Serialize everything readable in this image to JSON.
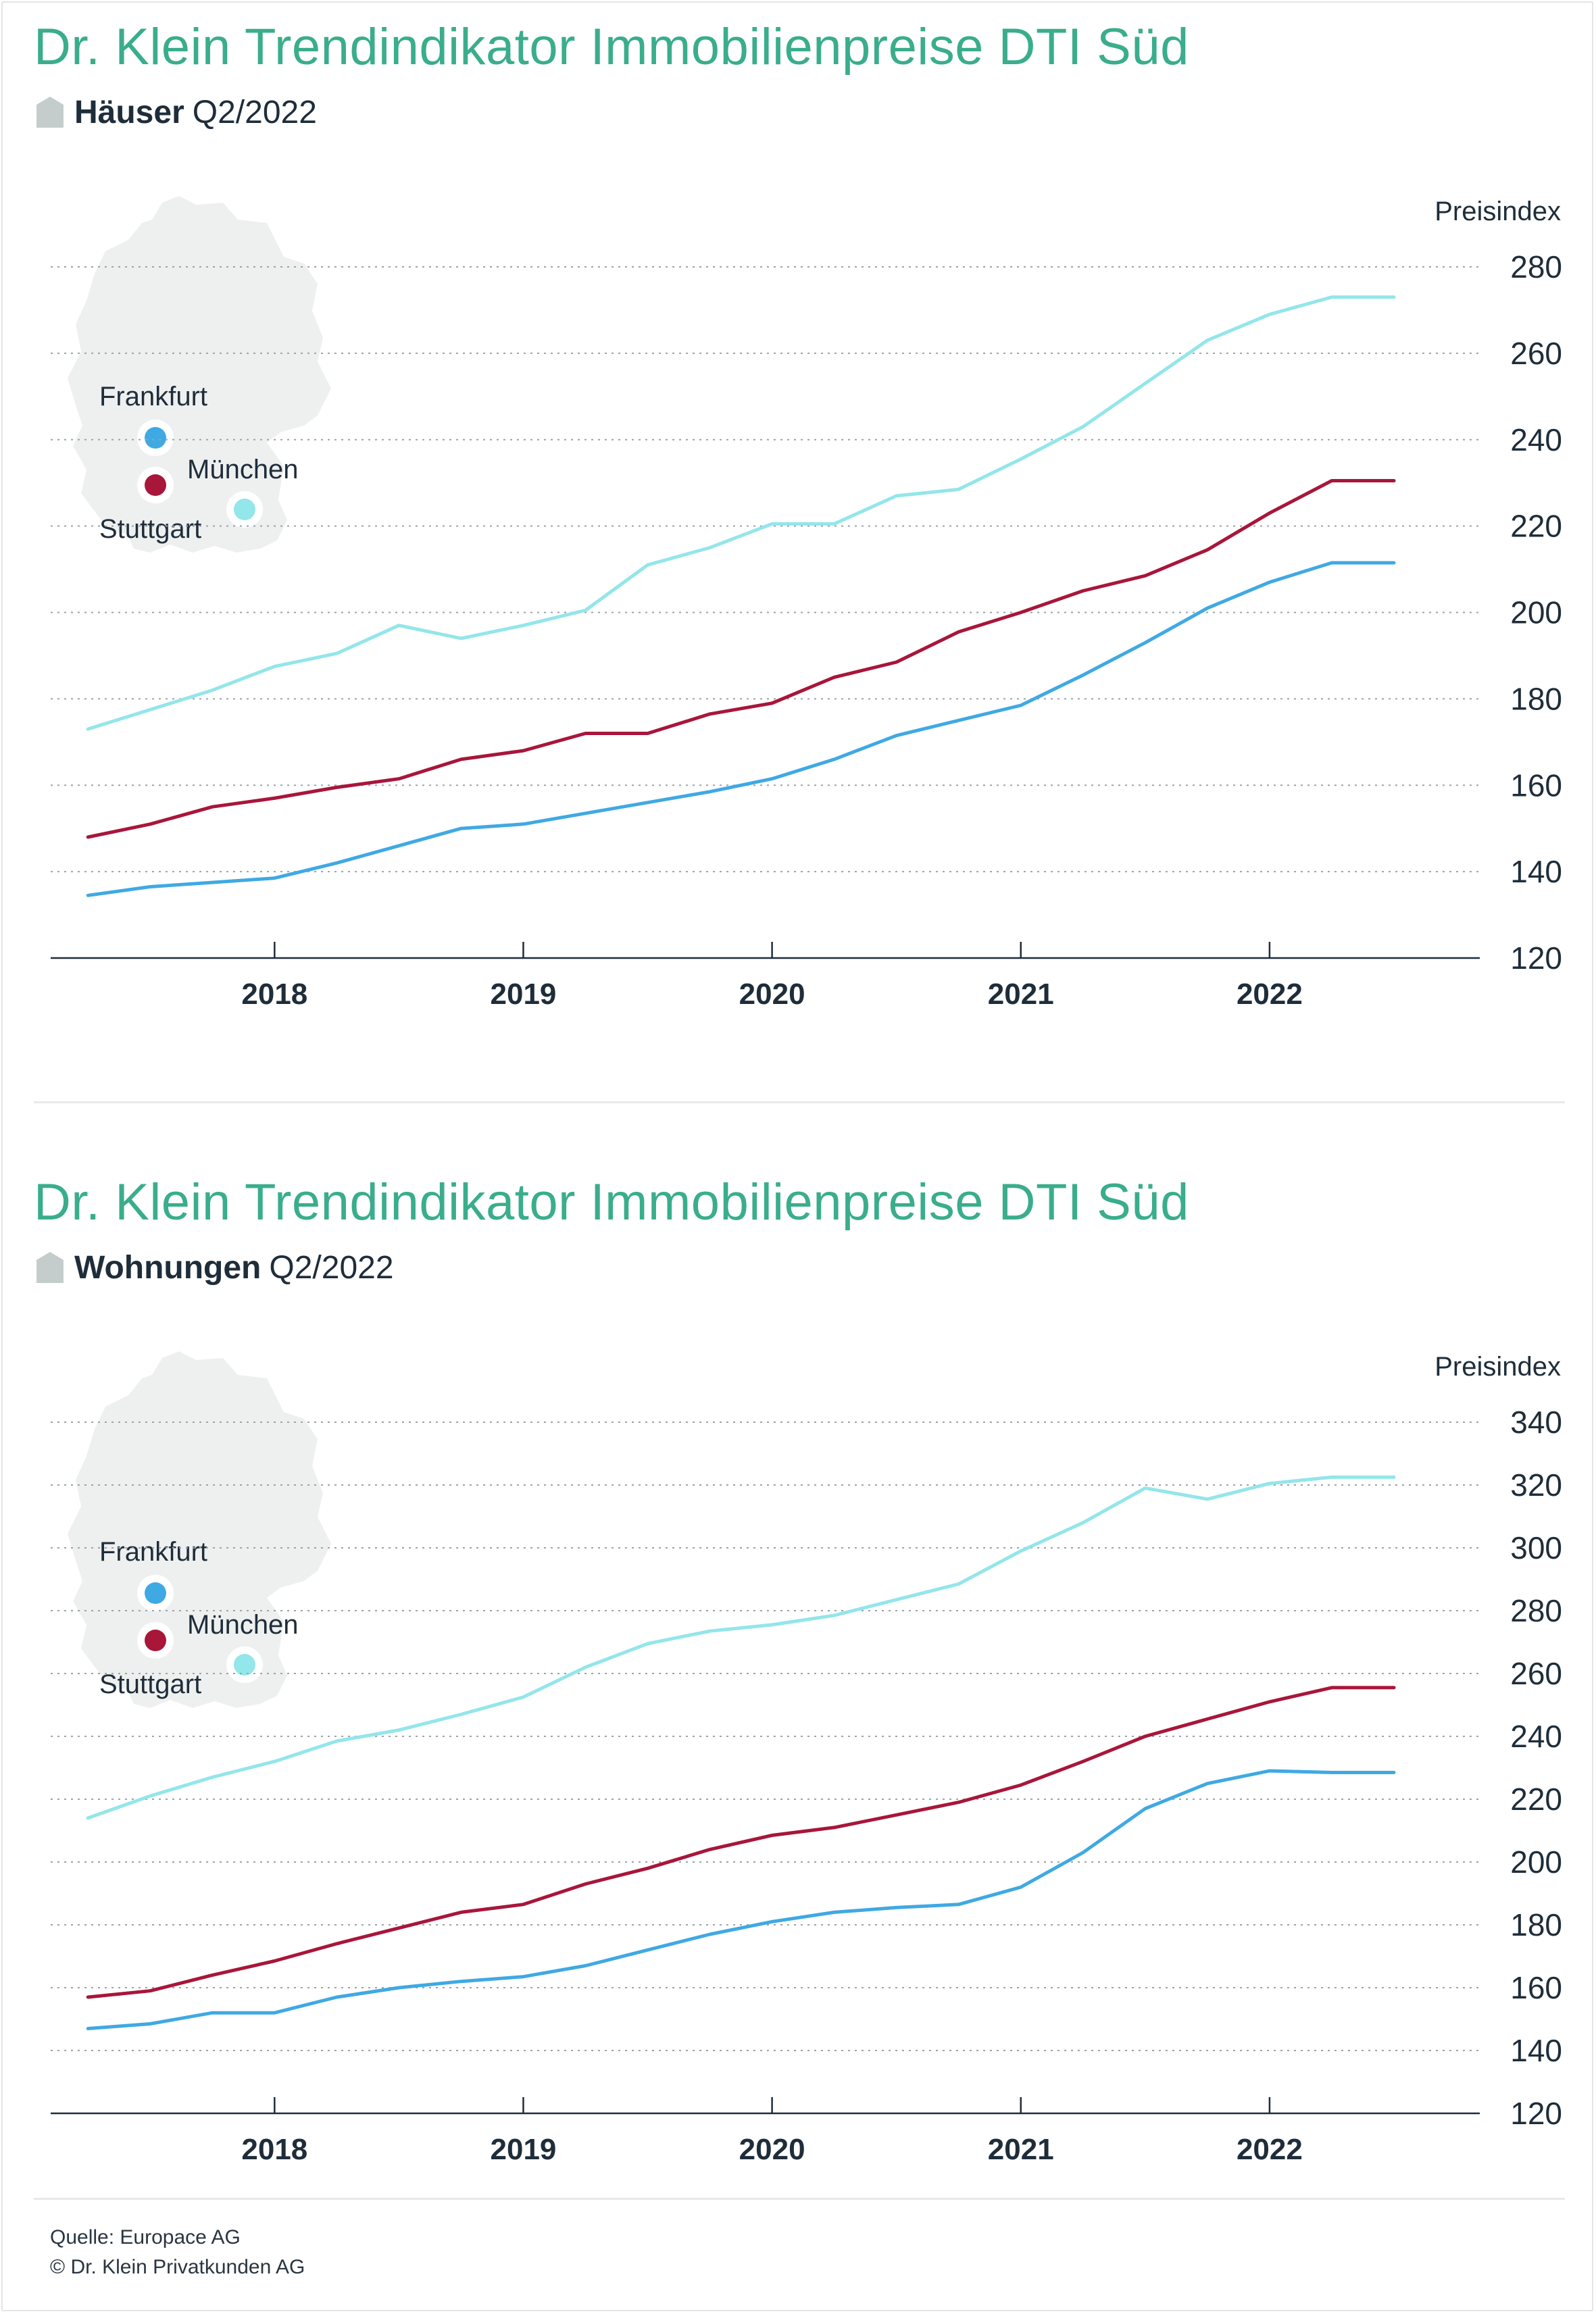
{
  "colors": {
    "frankfurt": "#3fa9e3",
    "muenchen": "#a8163a",
    "stuttgart": "#93e6ea",
    "title": "#3aad8c",
    "map": "#eef0f0"
  },
  "icons": {
    "subtitle_icon": "house-icon",
    "map": "germany-map-icon"
  },
  "panels": [
    {
      "title": "Dr. Klein Trendindikator Immobilienpreise DTI Süd",
      "kind": "Häuser",
      "period": "Q2/2022",
      "map_labels": {
        "frankfurt": "Frankfurt",
        "muenchen": "München",
        "stuttgart": "Stuttgart"
      }
    },
    {
      "title": "Dr. Klein Trendindikator Immobilienpreise DTI Süd",
      "kind": "Wohnungen",
      "period": "Q2/2022",
      "map_labels": {
        "frankfurt": "Frankfurt",
        "muenchen": "München",
        "stuttgart": "Stuttgart"
      }
    }
  ],
  "chart_data": [
    {
      "type": "line",
      "title": "Häuser Q2/2022",
      "ylabel": "Preisindex",
      "ylim": [
        120,
        280
      ],
      "yticks": [
        280,
        260,
        240,
        220,
        200,
        180,
        160,
        140,
        120
      ],
      "x_tick_labels": [
        "2018",
        "2019",
        "2020",
        "2021",
        "2022"
      ],
      "x_tick_years": [
        2018,
        2019,
        2020,
        2021,
        2022
      ],
      "xlim": [
        2017.1,
        2022.75
      ],
      "grid": true,
      "x": [
        2017.25,
        2017.5,
        2017.75,
        2018.0,
        2018.25,
        2018.5,
        2018.75,
        2019.0,
        2019.25,
        2019.5,
        2019.75,
        2020.0,
        2020.25,
        2020.5,
        2020.75,
        2021.0,
        2021.25,
        2021.5,
        2021.75,
        2022.0,
        2022.25,
        2022.5
      ],
      "series": [
        {
          "name": "Frankfurt",
          "color": "#3fa9e3",
          "values": [
            134.5,
            136.5,
            137.5,
            138.5,
            142,
            146,
            150,
            151,
            153.5,
            156,
            158.5,
            161.5,
            166,
            171.5,
            175,
            178.5,
            185.5,
            193,
            201,
            207,
            211.5,
            211.5
          ]
        },
        {
          "name": "München",
          "color": "#a8163a",
          "values": [
            148,
            151,
            155,
            157,
            159.5,
            161.5,
            166,
            168,
            172,
            172,
            176.5,
            179,
            185,
            188.5,
            195.5,
            200,
            205,
            208.5,
            214.5,
            223,
            230.5,
            230.5
          ]
        },
        {
          "name": "Stuttgart",
          "color": "#93e6ea",
          "values": [
            173,
            177.5,
            182,
            187.5,
            190.5,
            197,
            194,
            197,
            200.5,
            211,
            215,
            220.5,
            220.5,
            227,
            228.5,
            235.5,
            243,
            253,
            263,
            269,
            273,
            273
          ]
        }
      ]
    },
    {
      "type": "line",
      "title": "Wohnungen Q2/2022",
      "ylabel": "Preisindex",
      "ylim": [
        120,
        340
      ],
      "yticks": [
        340,
        320,
        300,
        280,
        260,
        240,
        220,
        200,
        180,
        160,
        140,
        120
      ],
      "x_tick_labels": [
        "2018",
        "2019",
        "2020",
        "2021",
        "2022"
      ],
      "x_tick_years": [
        2018,
        2019,
        2020,
        2021,
        2022
      ],
      "xlim": [
        2017.1,
        2022.75
      ],
      "grid": true,
      "x": [
        2017.25,
        2017.5,
        2017.75,
        2018.0,
        2018.25,
        2018.5,
        2018.75,
        2019.0,
        2019.25,
        2019.5,
        2019.75,
        2020.0,
        2020.25,
        2020.5,
        2020.75,
        2021.0,
        2021.25,
        2021.5,
        2021.75,
        2022.0,
        2022.25,
        2022.5
      ],
      "series": [
        {
          "name": "Frankfurt",
          "color": "#3fa9e3",
          "values": [
            147,
            148.5,
            152,
            152,
            157,
            160,
            162,
            163.5,
            167,
            172,
            177,
            181,
            184,
            185.5,
            186.5,
            192,
            203,
            217,
            225,
            229,
            228.5,
            228.5
          ]
        },
        {
          "name": "München",
          "color": "#a8163a",
          "values": [
            157,
            159,
            164,
            168.5,
            174,
            179,
            184,
            186.5,
            193,
            198,
            204,
            208.5,
            211,
            215,
            219,
            224.5,
            232,
            240,
            245.5,
            251,
            255.5,
            255.5
          ]
        },
        {
          "name": "Stuttgart",
          "color": "#93e6ea",
          "values": [
            214,
            221,
            227,
            232,
            238.5,
            242,
            247,
            252.5,
            262,
            269.5,
            273.5,
            275.5,
            278.5,
            283.5,
            288.5,
            299,
            308,
            319,
            315.5,
            320.5,
            322.5,
            322.5
          ]
        }
      ]
    }
  ],
  "source": {
    "line1": "Quelle: Europace AG",
    "line2": "© Dr. Klein Privatkunden AG"
  }
}
